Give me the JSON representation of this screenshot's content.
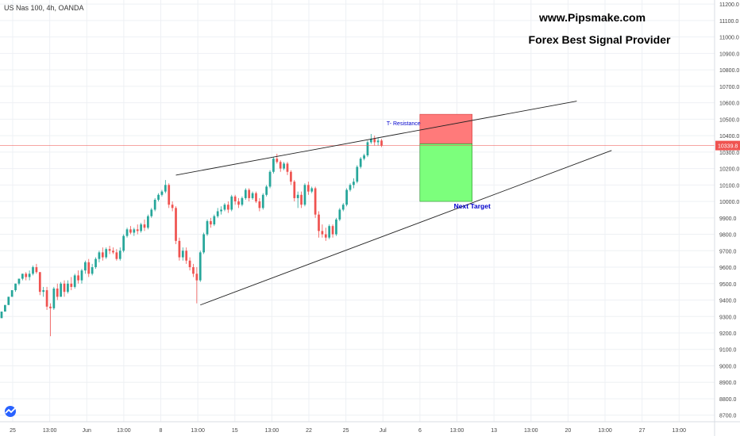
{
  "header": {
    "symbol": "US Nas 100, 4h, OANDA"
  },
  "branding": {
    "url": "www.Pipsmake.com",
    "tagline": "Forex Best Signal Provider",
    "logo_icon": "tradingview-logo-icon"
  },
  "colors": {
    "bull": "#26a69a",
    "bear": "#ef5350",
    "stop_zone": "#ff7a7a",
    "target_zone": "#7cff7c",
    "price_line": "#ef5350",
    "trendline": "#222222",
    "annotation_text": "#0000cc",
    "grid": "#eef0f4"
  },
  "chart_data": {
    "type": "candlestick",
    "timeframe": "4h",
    "y_axis": {
      "ticks": [
        11200,
        11100,
        11000,
        10900,
        10800,
        10700,
        10600,
        10500,
        10400,
        10300,
        10200,
        10100,
        10000,
        9900,
        9800,
        9700,
        9600,
        9500,
        9400,
        9300,
        9200,
        9100,
        9000,
        8900,
        8800,
        8700
      ],
      "tick_labels": [
        "11200.0",
        "11100.0",
        "11000.0",
        "10900.0",
        "10800.0",
        "10700.0",
        "10600.0",
        "10500.0",
        "10400.0",
        "10300.0",
        "10200.0",
        "10100.0",
        "10000.0",
        "9900.0",
        "9800.0",
        "9700.0",
        "9600.0",
        "9500.0",
        "9400.0",
        "9300.0",
        "9200.0",
        "9100.0",
        "9000.0",
        "8900.0",
        "8800.0",
        "8700.0"
      ],
      "range": [
        8660,
        11225
      ]
    },
    "x_axis": {
      "tick_labels": [
        "25",
        "13:00",
        "Jun",
        "13:00",
        "8",
        "13:00",
        "15",
        "13:00",
        "22",
        "25",
        "Jul",
        "6",
        "13:00",
        "13",
        "13:00",
        "20",
        "13:00",
        "27",
        "13:00"
      ],
      "bar_range": [
        0,
        205
      ]
    },
    "last_price": 10339.8,
    "last_price_label": "10339.8",
    "candles": [
      [
        9290,
        9300,
        9290,
        9330
      ],
      [
        9330,
        9330,
        9370,
        9370
      ],
      [
        9370,
        9370,
        9420,
        9420
      ],
      [
        9420,
        9420,
        9460,
        9460
      ],
      [
        9460,
        9450,
        9500,
        9500
      ],
      [
        9500,
        9490,
        9530,
        9530
      ],
      [
        9530,
        9520,
        9560,
        9560
      ],
      [
        9560,
        9520,
        9570,
        9540
      ],
      [
        9540,
        9520,
        9580,
        9560
      ],
      [
        9560,
        9550,
        9610,
        9600
      ],
      [
        9600,
        9560,
        9620,
        9570
      ],
      [
        9570,
        9430,
        9570,
        9450
      ],
      [
        9450,
        9420,
        9480,
        9460
      ],
      [
        9460,
        9340,
        9480,
        9360
      ],
      [
        9360,
        9180,
        9380,
        9350
      ],
      [
        9350,
        9340,
        9480,
        9470
      ],
      [
        9470,
        9400,
        9500,
        9420
      ],
      [
        9420,
        9420,
        9510,
        9500
      ],
      [
        9500,
        9420,
        9520,
        9450
      ],
      [
        9450,
        9440,
        9520,
        9500
      ],
      [
        9500,
        9460,
        9540,
        9480
      ],
      [
        9480,
        9470,
        9560,
        9550
      ],
      [
        9550,
        9500,
        9580,
        9520
      ],
      [
        9520,
        9500,
        9590,
        9580
      ],
      [
        9580,
        9560,
        9640,
        9630
      ],
      [
        9630,
        9540,
        9650,
        9560
      ],
      [
        9560,
        9550,
        9620,
        9600
      ],
      [
        9600,
        9590,
        9660,
        9650
      ],
      [
        9650,
        9630,
        9700,
        9690
      ],
      [
        9690,
        9640,
        9720,
        9660
      ],
      [
        9660,
        9650,
        9720,
        9710
      ],
      [
        9710,
        9680,
        9730,
        9700
      ],
      [
        9700,
        9680,
        9720,
        9690
      ],
      [
        9690,
        9640,
        9710,
        9650
      ],
      [
        9650,
        9640,
        9720,
        9700
      ],
      [
        9700,
        9690,
        9800,
        9790
      ],
      [
        9790,
        9780,
        9840,
        9830
      ],
      [
        9830,
        9800,
        9850,
        9810
      ],
      [
        9810,
        9790,
        9840,
        9830
      ],
      [
        9830,
        9800,
        9860,
        9820
      ],
      [
        9820,
        9810,
        9870,
        9860
      ],
      [
        9860,
        9820,
        9890,
        9840
      ],
      [
        9840,
        9830,
        9920,
        9910
      ],
      [
        9910,
        9900,
        9960,
        9950
      ],
      [
        9950,
        9940,
        10020,
        10010
      ],
      [
        10010,
        10000,
        10050,
        10040
      ],
      [
        10040,
        10030,
        10070,
        10060
      ],
      [
        10060,
        10050,
        10130,
        10100
      ],
      [
        10100,
        9960,
        10110,
        9980
      ],
      [
        9980,
        9940,
        10000,
        9960
      ],
      [
        9960,
        9740,
        9970,
        9760
      ],
      [
        9760,
        9640,
        9780,
        9660
      ],
      [
        9660,
        9640,
        9720,
        9700
      ],
      [
        9700,
        9620,
        9720,
        9640
      ],
      [
        9640,
        9580,
        9660,
        9600
      ],
      [
        9600,
        9540,
        9620,
        9560
      ],
      [
        9560,
        9380,
        9600,
        9520
      ],
      [
        9520,
        9510,
        9700,
        9690
      ],
      [
        9690,
        9680,
        9810,
        9800
      ],
      [
        9800,
        9790,
        9890,
        9880
      ],
      [
        9880,
        9840,
        9900,
        9860
      ],
      [
        9860,
        9850,
        9920,
        9910
      ],
      [
        9910,
        9900,
        9960,
        9940
      ],
      [
        9940,
        9920,
        9970,
        9950
      ],
      [
        9950,
        9940,
        9990,
        9980
      ],
      [
        9980,
        9930,
        10000,
        9950
      ],
      [
        9950,
        9940,
        10040,
        10030
      ],
      [
        10030,
        9980,
        10040,
        10000
      ],
      [
        10000,
        9960,
        10020,
        9980
      ],
      [
        9980,
        9970,
        10030,
        10020
      ],
      [
        10020,
        10010,
        10080,
        10070
      ],
      [
        10070,
        10000,
        10080,
        10020
      ],
      [
        10020,
        10010,
        10060,
        10050
      ],
      [
        10050,
        9990,
        10060,
        10000
      ],
      [
        10000,
        9940,
        10020,
        9960
      ],
      [
        9960,
        9950,
        10050,
        10040
      ],
      [
        10040,
        10030,
        10100,
        10090
      ],
      [
        10090,
        10080,
        10190,
        10180
      ],
      [
        10180,
        10170,
        10270,
        10260
      ],
      [
        10260,
        10230,
        10290,
        10240
      ],
      [
        10240,
        10180,
        10250,
        10200
      ],
      [
        10200,
        10190,
        10240,
        10230
      ],
      [
        10230,
        10160,
        10240,
        10180
      ],
      [
        10180,
        10100,
        10190,
        10120
      ],
      [
        10120,
        10000,
        10130,
        10020
      ],
      [
        10020,
        9960,
        10060,
        10040
      ],
      [
        10040,
        9960,
        10060,
        9980
      ],
      [
        9980,
        9970,
        10110,
        10100
      ],
      [
        10100,
        10040,
        10120,
        10060
      ],
      [
        10060,
        10050,
        10090,
        10080
      ],
      [
        10080,
        9900,
        10090,
        9920
      ],
      [
        9920,
        9780,
        9940,
        9820
      ],
      [
        9820,
        9780,
        9860,
        9800
      ],
      [
        9800,
        9760,
        9840,
        9780
      ],
      [
        9780,
        9770,
        9860,
        9850
      ],
      [
        9850,
        9780,
        9860,
        9800
      ],
      [
        9800,
        9790,
        9900,
        9890
      ],
      [
        9890,
        9880,
        9960,
        9950
      ],
      [
        9950,
        9940,
        9990,
        9980
      ],
      [
        9980,
        9970,
        10080,
        10070
      ],
      [
        10070,
        10060,
        10110,
        10100
      ],
      [
        10100,
        10080,
        10140,
        10120
      ],
      [
        10120,
        10110,
        10220,
        10210
      ],
      [
        10210,
        10200,
        10270,
        10260
      ],
      [
        10260,
        10250,
        10290,
        10280
      ],
      [
        10280,
        10270,
        10370,
        10360
      ],
      [
        10360,
        10350,
        10410,
        10380
      ],
      [
        10380,
        10340,
        10400,
        10360
      ],
      [
        10360,
        10340,
        10390,
        10370
      ],
      [
        10370,
        10330,
        10380,
        10339.8
      ]
    ],
    "annotations": {
      "resistance_label": "T- Resistance",
      "target_label": "Next Target",
      "upper_trendline": [
        [
          50,
          10160
        ],
        [
          165,
          10610
        ]
      ],
      "lower_trendline": [
        [
          57,
          9370
        ],
        [
          175,
          10310
        ]
      ],
      "stop_zone": {
        "bar_from": 120,
        "bar_to": 135,
        "price_from": 10350,
        "price_to": 10530
      },
      "target_zone": {
        "bar_from": 120,
        "bar_to": 135,
        "price_from": 10000,
        "price_to": 10350
      }
    }
  }
}
